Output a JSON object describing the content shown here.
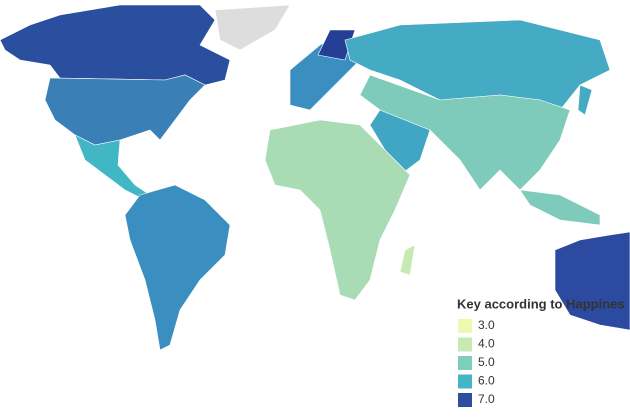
{
  "legend": {
    "title": "Key according to Happines",
    "items": [
      {
        "value": 3,
        "label": "3.0",
        "color": "#edf8b1"
      },
      {
        "value": 4,
        "label": "4.0",
        "color": "#c7e9b4"
      },
      {
        "value": 5,
        "label": "5.0",
        "color": "#7fcdbb"
      },
      {
        "value": 6,
        "label": "6.0",
        "color": "#41b6c4"
      },
      {
        "value": 7,
        "label": "7.0",
        "color": "#2c4f9f"
      }
    ]
  }
}
